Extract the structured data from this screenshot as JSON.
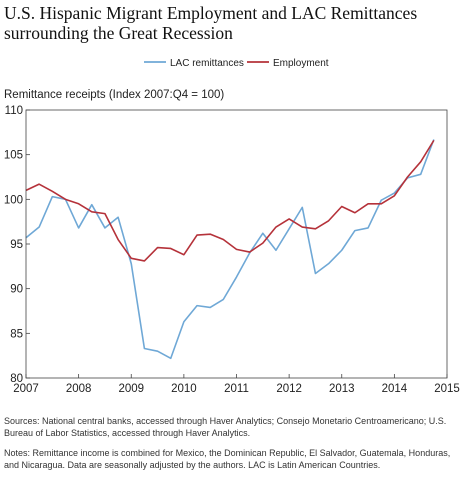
{
  "title_line1": "U.S. Hispanic Migrant Employment and LAC Remittances",
  "title_line2": "surrounding the Great Recession",
  "sources": "Sources: National central banks, accessed through Haver Analytics; Consejo Monetario Centroamericano; U.S. Bureau of Labor Statistics, accessed through Haver Analytics.",
  "notes": "Notes: Remittance income is combined for Mexico, the Dominican Republic, El Salvador, Guatemala, Honduras, and Nicaragua. Data are seasonally adjusted by the authors. LAC is Latin American Countries.",
  "chart_data": {
    "type": "line",
    "ylabel": "Remittance receipts (Index 2007:Q4 = 100)",
    "ylim": [
      80,
      110
    ],
    "yticks": [
      80,
      85,
      90,
      95,
      100,
      105,
      110
    ],
    "xlim": [
      2007,
      2015
    ],
    "xticks": [
      "2007",
      "2008",
      "2009",
      "2010",
      "2011",
      "2012",
      "2013",
      "2014",
      "2015"
    ],
    "legend_position": "top-center",
    "series": [
      {
        "name": "LAC remittances",
        "color": "#6fa8d6",
        "x": [
          2007.0,
          2007.25,
          2007.5,
          2007.75,
          2008.0,
          2008.25,
          2008.5,
          2008.75,
          2009.0,
          2009.25,
          2009.5,
          2009.75,
          2010.0,
          2010.25,
          2010.5,
          2010.75,
          2011.0,
          2011.25,
          2011.5,
          2011.75,
          2012.0,
          2012.25,
          2012.5,
          2012.75,
          2013.0,
          2013.25,
          2013.5,
          2013.75,
          2014.0,
          2014.25,
          2014.5,
          2014.75
        ],
        "values": [
          95.7,
          96.9,
          100.3,
          100.0,
          96.8,
          99.4,
          96.8,
          98.0,
          92.8,
          83.3,
          83.0,
          82.2,
          86.3,
          88.1,
          87.9,
          88.8,
          91.3,
          94.0,
          96.2,
          94.3,
          96.7,
          99.1,
          91.7,
          92.8,
          94.3,
          96.5,
          96.8,
          99.9,
          100.7,
          102.4,
          102.8,
          106.7
        ]
      },
      {
        "name": "Employment",
        "color": "#b5323a",
        "x": [
          2007.0,
          2007.25,
          2007.5,
          2007.75,
          2008.0,
          2008.25,
          2008.5,
          2008.75,
          2009.0,
          2009.25,
          2009.5,
          2009.75,
          2010.0,
          2010.25,
          2010.5,
          2010.75,
          2011.0,
          2011.25,
          2011.5,
          2011.75,
          2012.0,
          2012.25,
          2012.5,
          2012.75,
          2013.0,
          2013.25,
          2013.5,
          2013.75,
          2014.0,
          2014.25,
          2014.5,
          2014.75
        ],
        "values": [
          101.0,
          101.7,
          100.9,
          100.0,
          99.5,
          98.6,
          98.4,
          95.5,
          93.4,
          93.1,
          94.6,
          94.5,
          93.8,
          96.0,
          96.1,
          95.5,
          94.4,
          94.1,
          95.1,
          96.9,
          97.8,
          96.9,
          96.7,
          97.6,
          99.2,
          98.5,
          99.5,
          99.5,
          100.4,
          102.5,
          104.2,
          106.6
        ]
      }
    ]
  }
}
